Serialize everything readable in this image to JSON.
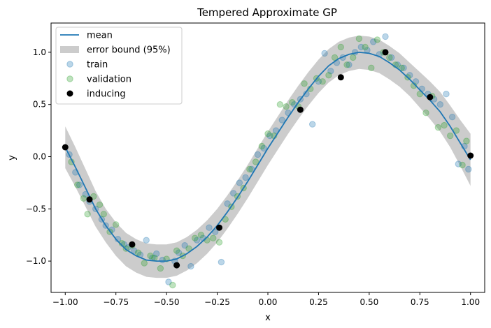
{
  "chart_data": {
    "type": "scatter",
    "title": "Tempered Approximate GP",
    "xlabel": "x",
    "ylabel": "y",
    "xlim": [
      -1.07,
      1.07
    ],
    "ylim": [
      -1.3,
      1.28
    ],
    "xticks": [
      -1.0,
      -0.75,
      -0.5,
      -0.25,
      0.0,
      0.25,
      0.5,
      0.75,
      1.0
    ],
    "xtick_labels": [
      "−1.00",
      "−0.75",
      "−0.50",
      "−0.25",
      "0.00",
      "0.25",
      "0.50",
      "0.75",
      "1.00"
    ],
    "yticks": [
      -1.0,
      -0.5,
      0.0,
      0.5,
      1.0
    ],
    "ytick_labels": [
      "−1.0",
      "−0.5",
      "0.0",
      "0.5",
      "1.0"
    ],
    "grid": false,
    "legend_position": "top-left",
    "colors": {
      "mean": "#1f77b4",
      "band": "#cccccc",
      "train": "#1f77b4",
      "validation": "#2ca02c",
      "inducing": "#000000"
    },
    "legend": [
      {
        "key": "mean",
        "label": "mean",
        "kind": "line"
      },
      {
        "key": "band",
        "label": "error bound (95%)",
        "kind": "patch"
      },
      {
        "key": "train",
        "label": "train",
        "kind": "marker-light"
      },
      {
        "key": "validation",
        "label": "validation",
        "kind": "marker-light"
      },
      {
        "key": "inducing",
        "label": "inducing",
        "kind": "marker-solid"
      }
    ],
    "mean": {
      "x": [
        -1.0,
        -0.95,
        -0.9,
        -0.85,
        -0.8,
        -0.75,
        -0.7,
        -0.65,
        -0.6,
        -0.55,
        -0.5,
        -0.45,
        -0.4,
        -0.35,
        -0.3,
        -0.25,
        -0.2,
        -0.15,
        -0.1,
        -0.05,
        0.0,
        0.05,
        0.1,
        0.15,
        0.2,
        0.25,
        0.3,
        0.35,
        0.4,
        0.45,
        0.5,
        0.55,
        0.6,
        0.65,
        0.7,
        0.75,
        0.8,
        0.85,
        0.9,
        0.95,
        1.0
      ],
      "y": [
        0.09,
        -0.1,
        -0.3,
        -0.5,
        -0.66,
        -0.79,
        -0.89,
        -0.95,
        -0.99,
        -1.0,
        -1.0,
        -0.98,
        -0.93,
        -0.86,
        -0.77,
        -0.66,
        -0.53,
        -0.39,
        -0.24,
        -0.08,
        0.08,
        0.23,
        0.38,
        0.52,
        0.65,
        0.77,
        0.87,
        0.94,
        0.98,
        1.0,
        0.99,
        0.96,
        0.9,
        0.83,
        0.74,
        0.64,
        0.54,
        0.43,
        0.29,
        0.13,
        -0.03
      ]
    },
    "band_halfwidth": [
      0.2,
      0.19,
      0.18,
      0.17,
      0.16,
      0.16,
      0.16,
      0.16,
      0.16,
      0.16,
      0.16,
      0.16,
      0.16,
      0.16,
      0.16,
      0.16,
      0.16,
      0.16,
      0.16,
      0.16,
      0.16,
      0.16,
      0.16,
      0.16,
      0.16,
      0.16,
      0.16,
      0.16,
      0.16,
      0.16,
      0.16,
      0.16,
      0.16,
      0.16,
      0.16,
      0.17,
      0.18,
      0.19,
      0.2,
      0.22,
      0.25
    ],
    "train": {
      "x": [
        -0.98,
        -0.95,
        -0.93,
        -0.9,
        -0.88,
        -0.85,
        -0.82,
        -0.8,
        -0.77,
        -0.74,
        -0.71,
        -0.69,
        -0.66,
        -0.63,
        -0.6,
        -0.57,
        -0.55,
        -0.52,
        -0.49,
        -0.46,
        -0.44,
        -0.41,
        -0.38,
        -0.35,
        -0.32,
        -0.29,
        -0.26,
        -0.23,
        -0.2,
        -0.17,
        -0.14,
        -0.11,
        -0.08,
        -0.05,
        -0.02,
        0.01,
        0.04,
        0.07,
        0.1,
        0.13,
        0.16,
        0.19,
        0.22,
        0.25,
        0.28,
        0.31,
        0.34,
        0.37,
        0.4,
        0.43,
        0.46,
        0.49,
        0.52,
        0.55,
        0.58,
        0.61,
        0.64,
        0.67,
        0.7,
        0.73,
        0.76,
        0.79,
        0.82,
        0.85,
        0.88,
        0.91,
        0.94,
        0.97,
        0.99
      ],
      "y": [
        0.02,
        -0.15,
        -0.27,
        -0.36,
        -0.43,
        -0.5,
        -0.6,
        -0.66,
        -0.7,
        -0.79,
        -0.84,
        -0.87,
        -0.9,
        -0.94,
        -0.8,
        -0.97,
        -0.93,
        -0.99,
        -1.2,
        -1.0,
        -0.92,
        -0.85,
        -1.05,
        -0.8,
        -0.78,
        -0.68,
        -0.72,
        -1.01,
        -0.45,
        -0.35,
        -0.25,
        -0.2,
        -0.12,
        0.02,
        0.08,
        0.2,
        0.25,
        0.35,
        0.42,
        0.5,
        0.55,
        0.6,
        0.31,
        0.72,
        0.99,
        0.82,
        0.9,
        0.95,
        0.88,
        1.0,
        1.05,
        1.02,
        1.1,
        0.98,
        1.15,
        0.95,
        0.88,
        0.85,
        0.78,
        0.72,
        0.65,
        0.6,
        0.55,
        0.5,
        0.6,
        0.38,
        -0.07,
        0.1,
        -0.12
      ]
    },
    "validation": {
      "x": [
        -0.97,
        -0.94,
        -0.91,
        -0.89,
        -0.86,
        -0.83,
        -0.81,
        -0.78,
        -0.75,
        -0.72,
        -0.7,
        -0.67,
        -0.64,
        -0.61,
        -0.58,
        -0.56,
        -0.53,
        -0.5,
        -0.47,
        -0.45,
        -0.42,
        -0.39,
        -0.36,
        -0.33,
        -0.3,
        -0.27,
        -0.24,
        -0.21,
        -0.18,
        -0.15,
        -0.12,
        -0.09,
        -0.06,
        -0.03,
        0.0,
        0.03,
        0.06,
        0.09,
        0.12,
        0.15,
        0.18,
        0.21,
        0.24,
        0.27,
        0.3,
        0.33,
        0.36,
        0.39,
        0.42,
        0.45,
        0.48,
        0.51,
        0.54,
        0.57,
        0.6,
        0.63,
        0.66,
        0.69,
        0.72,
        0.75,
        0.78,
        0.81,
        0.84,
        0.87,
        0.9,
        0.93,
        0.96,
        0.98
      ],
      "y": [
        -0.05,
        -0.27,
        -0.4,
        -0.55,
        -0.38,
        -0.46,
        -0.55,
        -0.72,
        -0.65,
        -0.83,
        -0.88,
        -0.85,
        -0.92,
        -1.02,
        -0.95,
        -0.97,
        -1.07,
        -0.98,
        -1.23,
        -0.9,
        -0.95,
        -0.88,
        -0.78,
        -0.75,
        -0.8,
        -0.78,
        -0.82,
        -0.6,
        -0.48,
        -0.38,
        -0.3,
        -0.12,
        -0.05,
        0.1,
        0.22,
        0.2,
        0.5,
        0.48,
        0.52,
        0.48,
        0.7,
        0.65,
        0.75,
        0.72,
        0.78,
        0.95,
        1.05,
        0.88,
        0.95,
        1.13,
        1.05,
        0.85,
        1.12,
        1.0,
        0.95,
        0.88,
        0.85,
        0.76,
        0.68,
        0.6,
        0.42,
        0.58,
        0.28,
        0.3,
        0.2,
        0.25,
        -0.08,
        0.15
      ]
    },
    "inducing": {
      "x": [
        -1.0,
        -0.88,
        -0.67,
        -0.45,
        -0.24,
        0.16,
        0.36,
        0.58,
        0.8,
        1.0
      ],
      "y": [
        0.09,
        -0.41,
        -0.84,
        -1.04,
        -0.68,
        0.45,
        0.76,
        1.0,
        0.57,
        0.01
      ]
    }
  }
}
